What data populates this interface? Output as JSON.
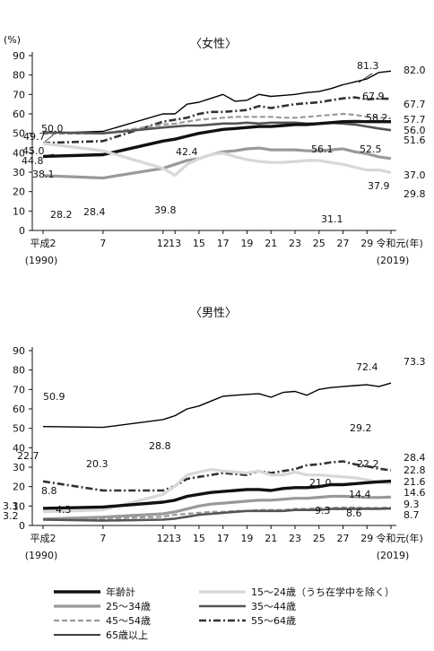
{
  "chart_data": [
    {
      "type": "line",
      "title": "〈女性〉",
      "unit_label": "(%)",
      "x_tick_labels": [
        "平成2",
        "7",
        "12",
        "13",
        "15",
        "17",
        "19",
        "21",
        "23",
        "25",
        "27",
        "29",
        "令和元"
      ],
      "x_tick_sublabels": {
        "first": "(1990)",
        "last": "(2019)"
      },
      "x_unit": "(年)",
      "ylim": [
        0,
        90
      ],
      "y_ticks": [
        0,
        10,
        20,
        30,
        40,
        50,
        60,
        70,
        80,
        90
      ],
      "x": [
        1990,
        1995,
        2000,
        2001,
        2002,
        2003,
        2004,
        2005,
        2006,
        2007,
        2008,
        2009,
        2010,
        2011,
        2012,
        2013,
        2014,
        2015,
        2016,
        2017,
        2018,
        2019
      ],
      "series": [
        {
          "key": "age65",
          "values": [
            50.0,
            51.0,
            60.0,
            60.0,
            65.0,
            66.0,
            68.0,
            70.0,
            66.5,
            67.0,
            70.0,
            69.0,
            69.5,
            70.0,
            71.0,
            71.5,
            73.0,
            75.0,
            76.5,
            78.0,
            81.3,
            82.0
          ],
          "color": "#000000",
          "width": 1.4,
          "dash": ""
        },
        {
          "key": "age55_64",
          "values": [
            45.0,
            46.0,
            56.0,
            57.0,
            58.0,
            60.0,
            61.0,
            61.0,
            61.5,
            62.0,
            64.0,
            63.0,
            64.0,
            65.0,
            65.5,
            66.0,
            67.0,
            68.0,
            68.5,
            67.5,
            67.9,
            67.7
          ],
          "color": "#333333",
          "width": 2.6,
          "dash": "8 3 2 3"
        },
        {
          "key": "age45_54",
          "values": [
            49.7,
            50.0,
            54.5,
            55.0,
            56.0,
            57.0,
            57.5,
            58.0,
            58.5,
            58.5,
            58.5,
            58.5,
            58.0,
            58.0,
            58.5,
            59.0,
            59.5,
            60.0,
            59.5,
            58.5,
            58.2,
            57.7
          ],
          "color": "#9a9a9a",
          "width": 2.2,
          "dash": "6 3"
        },
        {
          "key": "age35_44",
          "values": [
            50.5,
            50.0,
            53.0,
            53.5,
            54.0,
            54.0,
            54.5,
            55.0,
            55.0,
            55.5,
            55.0,
            55.5,
            55.5,
            55.5,
            55.0,
            55.0,
            55.5,
            55.0,
            54.5,
            53.5,
            52.5,
            51.6
          ],
          "color": "#555555",
          "width": 2.6,
          "dash": ""
        },
        {
          "key": "total",
          "values": [
            38.1,
            39.0,
            46.0,
            47.0,
            48.5,
            50.0,
            51.0,
            52.0,
            52.5,
            53.0,
            53.5,
            53.5,
            54.0,
            54.5,
            54.5,
            55.0,
            55.5,
            56.0,
            56.1,
            56.0,
            56.0,
            56.0
          ],
          "color": "#111111",
          "width": 3.4,
          "dash": ""
        },
        {
          "key": "age25_34",
          "values": [
            28.2,
            27.0,
            32.0,
            34.0,
            36.0,
            37.0,
            39.0,
            40.5,
            41.0,
            42.0,
            42.4,
            41.5,
            41.5,
            41.5,
            41.0,
            41.0,
            41.5,
            42.0,
            40.5,
            39.5,
            37.9,
            37.0
          ],
          "color": "#999999",
          "width": 3.2,
          "dash": ""
        },
        {
          "key": "age15_24",
          "values": [
            44.8,
            41.0,
            32.0,
            28.4,
            34.0,
            37.0,
            39.0,
            39.8,
            38.0,
            36.5,
            35.5,
            35.0,
            35.0,
            35.5,
            36.0,
            36.0,
            35.0,
            34.0,
            32.5,
            31.1,
            31.1,
            29.8
          ],
          "color": "#d8d8d8",
          "width": 3.2,
          "dash": ""
        }
      ],
      "annotations": [
        "50.0",
        "49.7",
        "45.0",
        "44.8",
        "38.1",
        "28.2",
        "28.4",
        "39.8",
        "42.4",
        "81.3",
        "67.9",
        "58.2",
        "56.1",
        "52.5",
        "37.9",
        "31.1"
      ],
      "end_labels": [
        "82.0",
        "67.7",
        "57.7",
        "56.0",
        "51.6",
        "37.0",
        "29.8"
      ]
    },
    {
      "type": "line",
      "title": "〈男性〉",
      "x_tick_labels": [
        "平成2",
        "7",
        "12",
        "13",
        "15",
        "17",
        "19",
        "21",
        "23",
        "25",
        "27",
        "29",
        "令和元"
      ],
      "x_tick_sublabels": {
        "first": "(1990)",
        "last": "(2019)"
      },
      "x_unit": "(年)",
      "ylim": [
        0,
        90
      ],
      "y_ticks": [
        0,
        10,
        20,
        30,
        40,
        50,
        60,
        70,
        80,
        90
      ],
      "x": [
        1990,
        1995,
        2000,
        2001,
        2002,
        2003,
        2004,
        2005,
        2006,
        2007,
        2008,
        2009,
        2010,
        2011,
        2012,
        2013,
        2014,
        2015,
        2016,
        2017,
        2018,
        2019
      ],
      "series": [
        {
          "key": "age65",
          "values": [
            50.9,
            50.5,
            54.5,
            56.5,
            60.0,
            61.5,
            64.0,
            66.5,
            67.0,
            67.5,
            67.8,
            66.0,
            68.5,
            69.0,
            67.0,
            70.0,
            71.0,
            71.5,
            72.0,
            72.4,
            71.5,
            73.3
          ],
          "color": "#000000",
          "width": 1.4,
          "dash": ""
        },
        {
          "key": "age55_64",
          "values": [
            22.7,
            18.0,
            18.0,
            20.3,
            24.0,
            25.0,
            26.0,
            27.0,
            26.5,
            26.0,
            28.0,
            27.0,
            28.0,
            29.0,
            31.0,
            31.5,
            32.5,
            33.0,
            31.5,
            30.5,
            29.2,
            28.4
          ],
          "color": "#333333",
          "width": 2.6,
          "dash": "8 3 2 3"
        },
        {
          "key": "age15_24",
          "values": [
            7.0,
            8.0,
            16.0,
            20.3,
            26.0,
            27.5,
            28.8,
            28.0,
            27.5,
            27.0,
            28.0,
            26.0,
            26.0,
            27.5,
            26.0,
            26.0,
            25.5,
            25.0,
            24.5,
            23.5,
            22.2,
            21.6
          ],
          "color": "#d8d8d8",
          "width": 3.2,
          "dash": ""
        },
        {
          "key": "total",
          "values": [
            8.8,
            9.5,
            12.0,
            13.0,
            15.0,
            16.0,
            17.0,
            17.5,
            18.0,
            18.5,
            18.5,
            18.0,
            19.0,
            19.5,
            19.5,
            20.0,
            21.0,
            21.0,
            21.5,
            22.0,
            22.5,
            22.8
          ],
          "color": "#111111",
          "width": 3.4,
          "dash": ""
        },
        {
          "key": "age25_34",
          "values": [
            3.3,
            4.3,
            6.0,
            7.0,
            8.5,
            10.0,
            11.0,
            11.5,
            12.0,
            12.5,
            13.0,
            13.0,
            13.5,
            14.0,
            14.0,
            14.5,
            15.0,
            15.0,
            14.8,
            14.4,
            14.4,
            14.6
          ],
          "color": "#999999",
          "width": 3.2,
          "dash": ""
        },
        {
          "key": "age45_54",
          "values": [
            3.2,
            3.5,
            4.5,
            5.5,
            6.0,
            6.5,
            7.0,
            7.0,
            7.5,
            7.5,
            8.0,
            8.0,
            8.0,
            8.5,
            8.5,
            9.0,
            9.0,
            9.3,
            9.3,
            9.0,
            9.0,
            9.3
          ],
          "color": "#9a9a9a",
          "width": 2.2,
          "dash": "6 3"
        },
        {
          "key": "age35_44",
          "values": [
            3.0,
            2.5,
            3.0,
            3.5,
            4.5,
            5.5,
            6.0,
            6.5,
            7.0,
            7.5,
            7.5,
            7.5,
            7.5,
            8.0,
            8.0,
            8.0,
            8.5,
            8.5,
            8.6,
            8.6,
            8.6,
            8.7
          ],
          "color": "#555555",
          "width": 2.6,
          "dash": ""
        }
      ],
      "annotations": [
        "50.9",
        "22.7",
        "20.3",
        "28.8",
        "72.4",
        "29.2",
        "22.2",
        "21.0",
        "14.4",
        "9.3",
        "8.6",
        "8.8",
        "3.3",
        "4.3",
        "3.2"
      ],
      "end_labels": [
        "73.3",
        "28.4",
        "22.8",
        "21.6",
        "14.6",
        "9.3",
        "8.7"
      ]
    }
  ],
  "legend": [
    {
      "key": "total",
      "label": "年齢計"
    },
    {
      "key": "age15_24",
      "label": "15～24歳（うち在学中を除く）"
    },
    {
      "key": "age25_34",
      "label": "25～34歳"
    },
    {
      "key": "age35_44",
      "label": "35～44歳"
    },
    {
      "key": "age45_54",
      "label": "45～54歳"
    },
    {
      "key": "age55_64",
      "label": "55～64歳"
    },
    {
      "key": "age65",
      "label": "65歳以上"
    }
  ]
}
